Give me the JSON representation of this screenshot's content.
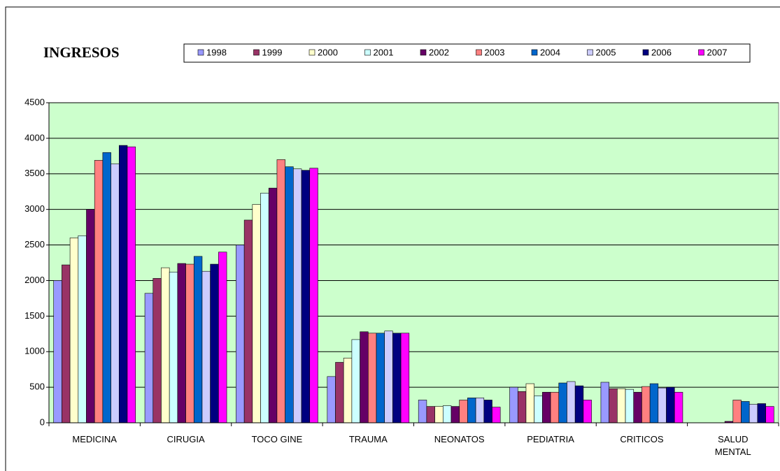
{
  "chart_data": {
    "type": "bar",
    "title": "INGRESOS",
    "categories": [
      "MEDICINA",
      "CIRUGIA",
      "TOCO GINE",
      "TRAUMA",
      "NEONATOS",
      "PEDIATRIA",
      "CRITICOS",
      "SALUD MENTAL"
    ],
    "series": [
      {
        "name": "1998",
        "color": "#9999ff",
        "values": [
          2000,
          1820,
          2500,
          650,
          320,
          500,
          570,
          0
        ]
      },
      {
        "name": "1999",
        "color": "#993366",
        "values": [
          2220,
          2030,
          2850,
          850,
          230,
          440,
          480,
          0
        ]
      },
      {
        "name": "2000",
        "color": "#ffffcc",
        "values": [
          2600,
          2180,
          3070,
          910,
          230,
          550,
          480,
          0
        ]
      },
      {
        "name": "2001",
        "color": "#ccffff",
        "values": [
          2630,
          2120,
          3230,
          1170,
          240,
          380,
          470,
          0
        ]
      },
      {
        "name": "2002",
        "color": "#660066",
        "values": [
          3000,
          2240,
          3300,
          1280,
          230,
          430,
          430,
          20
        ]
      },
      {
        "name": "2003",
        "color": "#ff8080",
        "values": [
          3690,
          2230,
          3700,
          1260,
          320,
          430,
          510,
          320
        ]
      },
      {
        "name": "2004",
        "color": "#0066cc",
        "values": [
          3800,
          2340,
          3600,
          1260,
          350,
          560,
          550,
          300
        ]
      },
      {
        "name": "2005",
        "color": "#ccccff",
        "values": [
          3640,
          2130,
          3570,
          1290,
          350,
          580,
          490,
          260
        ]
      },
      {
        "name": "2006",
        "color": "#000080",
        "values": [
          3900,
          2230,
          3550,
          1260,
          320,
          520,
          500,
          270
        ]
      },
      {
        "name": "2007",
        "color": "#ff00ff",
        "values": [
          3880,
          2400,
          3580,
          1260,
          220,
          320,
          430,
          230
        ]
      }
    ],
    "ylim": [
      0,
      4500
    ],
    "yticks": [
      0,
      500,
      1000,
      1500,
      2000,
      2500,
      3000,
      3500,
      4000,
      4500
    ],
    "grid": true,
    "plot_background": "#ccffcc",
    "legend": "top"
  }
}
